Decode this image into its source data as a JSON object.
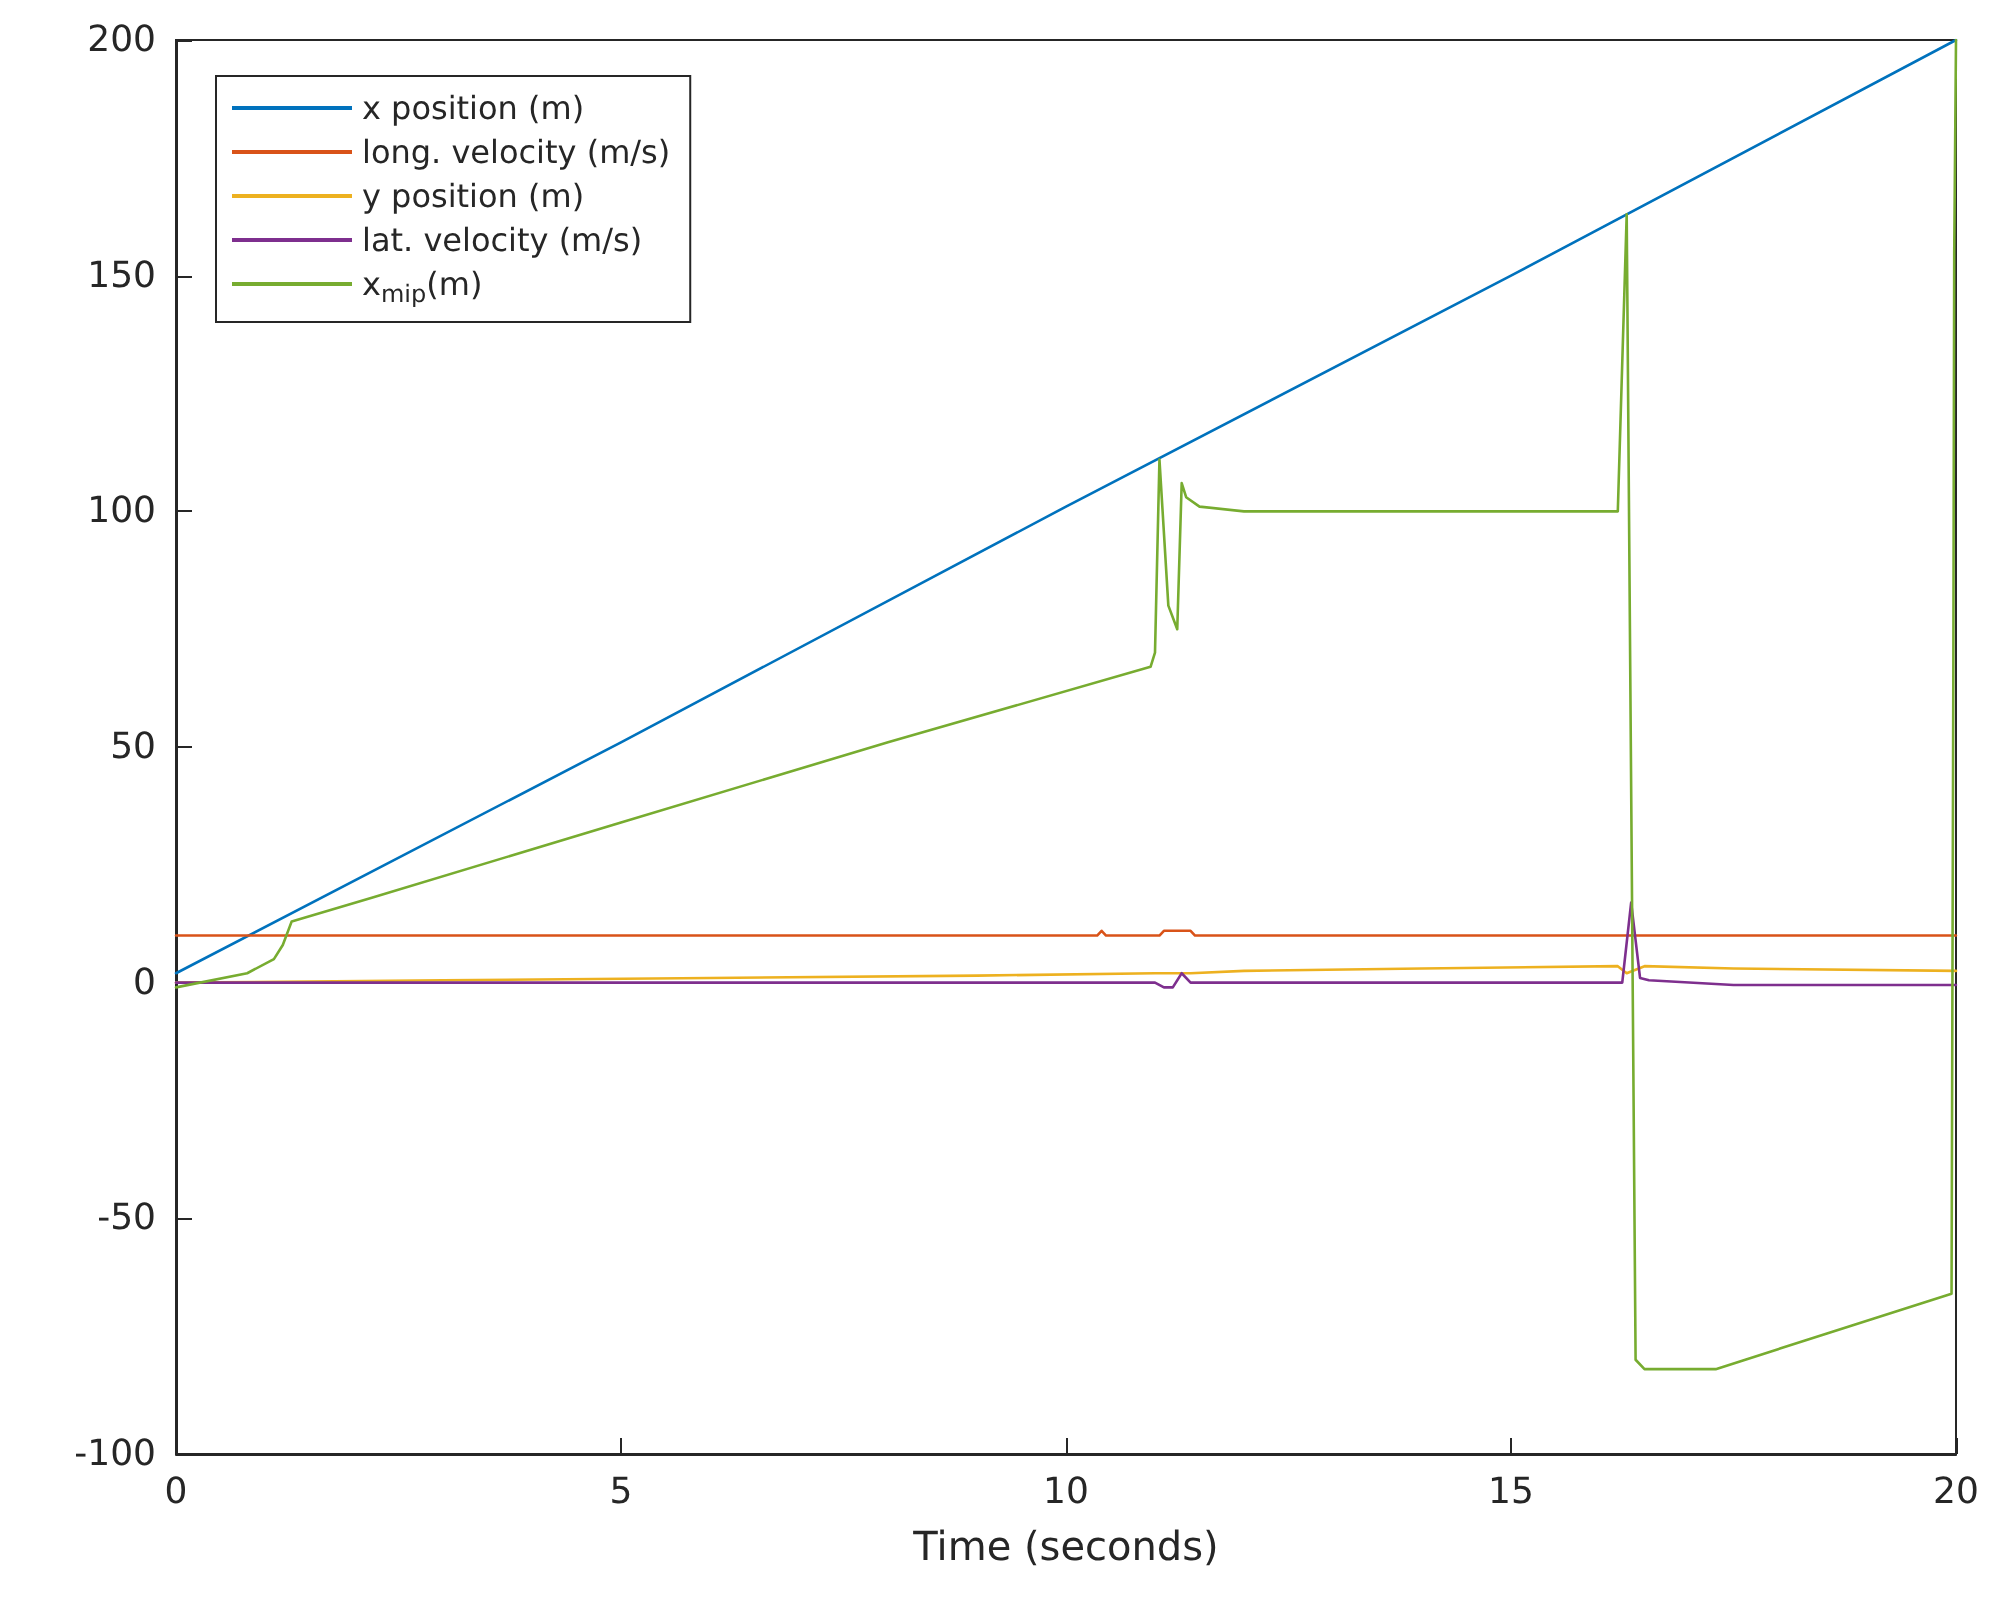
{
  "chart_data": {
    "type": "line",
    "xlabel": "Time (seconds)",
    "xlim": [
      0,
      20
    ],
    "xticks": [
      0,
      5,
      10,
      15,
      20
    ],
    "ylim": [
      -100,
      200
    ],
    "yticks": [
      -100,
      -50,
      0,
      50,
      100,
      150,
      200
    ],
    "grid": false,
    "legend": "top left",
    "marker": "none",
    "line_style": "solid",
    "series": [
      {
        "name": "x position (m)",
        "color": "#0072bd",
        "x": [
          0,
          5,
          10,
          15,
          20
        ],
        "values": [
          2,
          51,
          101,
          150,
          200
        ]
      },
      {
        "name": "long. velocity (m/s)",
        "color": "#d95319",
        "x": [
          0,
          10.35,
          10.4,
          10.45,
          11.05,
          11.1,
          11.4,
          11.45,
          16.3,
          16.4,
          20
        ],
        "values": [
          10,
          10,
          11,
          10,
          10,
          11,
          11,
          10,
          10,
          10,
          10
        ]
      },
      {
        "name": "y position (m)",
        "color": "#edb120",
        "x": [
          0,
          3,
          6,
          9,
          11,
          11.2,
          11.4,
          12,
          14,
          16.2,
          16.3,
          16.5,
          17.5,
          20
        ],
        "values": [
          0,
          0.5,
          1,
          1.5,
          2,
          2,
          2,
          2.5,
          3,
          3.5,
          2,
          3.5,
          3,
          2.5
        ]
      },
      {
        "name": "lat. velocity (m/s)",
        "color": "#7e2f8e",
        "x": [
          0,
          11,
          11.1,
          11.2,
          11.3,
          11.4,
          11.5,
          16.25,
          16.35,
          16.45,
          16.55,
          17.5,
          20
        ],
        "values": [
          0,
          0,
          -1,
          -1,
          2,
          0,
          0,
          0,
          17,
          1,
          0.5,
          -0.5,
          -0.5
        ]
      },
      {
        "name": "x$_{mip}$(m)",
        "color": "#77ac30",
        "x": [
          0,
          0.8,
          1.1,
          1.2,
          1.3,
          2.2,
          5,
          8,
          10.95,
          11.0,
          11.05,
          11.15,
          11.25,
          11.3,
          11.35,
          11.5,
          12,
          14,
          16.2,
          16.3,
          16.4,
          16.5,
          17.3,
          19.95,
          19.97,
          19.98,
          20
        ],
        "values": [
          -1,
          2,
          5,
          8,
          13,
          18,
          34,
          51,
          67,
          70,
          111,
          80,
          75,
          106,
          103,
          101,
          100,
          100,
          100,
          163,
          -80,
          -82,
          -82,
          -66,
          65,
          155,
          200
        ]
      }
    ]
  }
}
